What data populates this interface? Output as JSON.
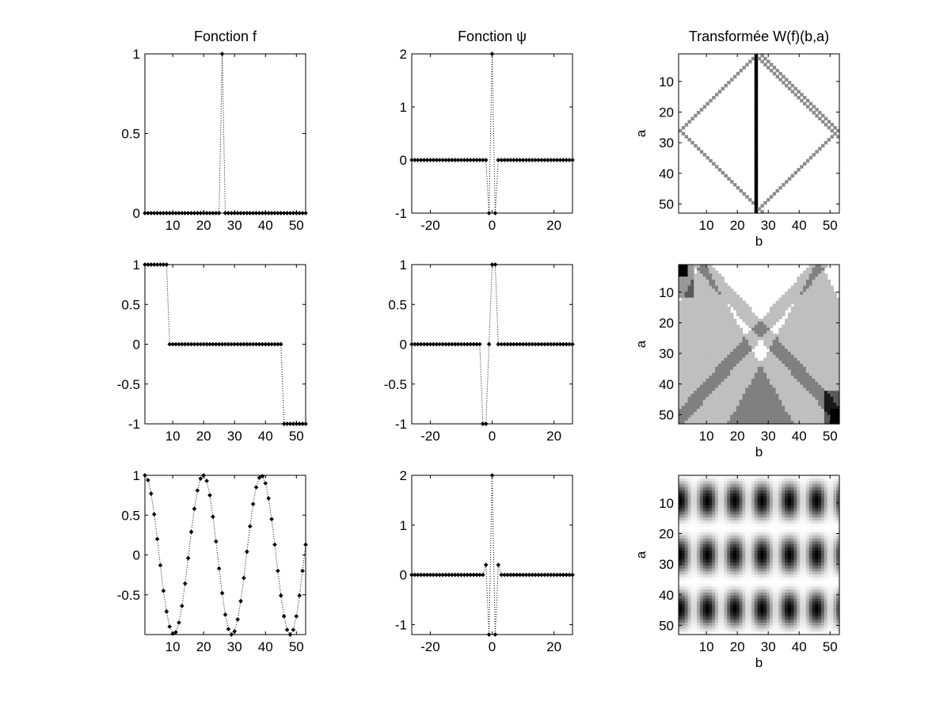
{
  "chart_data": [
    {
      "name": "f1",
      "type": "line",
      "marker": "dot",
      "linestyle": "dotted",
      "title": "Fonction f",
      "xlabel": "",
      "ylabel": "",
      "xlim": [
        1,
        53
      ],
      "ylim": [
        0,
        1
      ],
      "xticks": [
        10,
        20,
        30,
        40,
        50
      ],
      "yticks": [
        0,
        0.5,
        1
      ],
      "xtick_labels": [
        "10",
        "20",
        "30",
        "40",
        "50"
      ],
      "ytick_labels": [
        "0",
        "0.5",
        "1"
      ],
      "x_start": 1,
      "x_step": 1,
      "values": [
        0,
        0,
        0,
        0,
        0,
        0,
        0,
        0,
        0,
        0,
        0,
        0,
        0,
        0,
        0,
        0,
        0,
        0,
        0,
        0,
        0,
        0,
        0,
        0,
        0,
        1,
        0,
        0,
        0,
        0,
        0,
        0,
        0,
        0,
        0,
        0,
        0,
        0,
        0,
        0,
        0,
        0,
        0,
        0,
        0,
        0,
        0,
        0,
        0,
        0,
        0,
        0,
        0
      ]
    },
    {
      "name": "psi1",
      "type": "line",
      "marker": "dot",
      "linestyle": "dotted",
      "title": "Fonction ψ",
      "xlabel": "",
      "ylabel": "",
      "xlim": [
        -26,
        26
      ],
      "ylim": [
        -1,
        2
      ],
      "xticks": [
        -20,
        0,
        20
      ],
      "yticks": [
        -1,
        0,
        1,
        2
      ],
      "xtick_labels": [
        "-20",
        "0",
        "20"
      ],
      "ytick_labels": [
        "-1",
        "0",
        "1",
        "2"
      ],
      "x_start": -26,
      "x_step": 1,
      "values": [
        0,
        0,
        0,
        0,
        0,
        0,
        0,
        0,
        0,
        0,
        0,
        0,
        0,
        0,
        0,
        0,
        0,
        0,
        0,
        0,
        0,
        0,
        0,
        0,
        0,
        -1,
        2,
        -1,
        0,
        0,
        0,
        0,
        0,
        0,
        0,
        0,
        0,
        0,
        0,
        0,
        0,
        0,
        0,
        0,
        0,
        0,
        0,
        0,
        0,
        0,
        0,
        0,
        0
      ]
    },
    {
      "name": "w1",
      "type": "heatmap",
      "pattern": "diamond",
      "title": "Transformée W(f)(b,a)",
      "xlabel": "b",
      "ylabel": "a",
      "xlim": [
        1,
        53
      ],
      "ylim": [
        1,
        53
      ],
      "xticks": [
        10,
        20,
        30,
        40,
        50
      ],
      "yticks": [
        10,
        20,
        30,
        40,
        50
      ],
      "xtick_labels": [
        "10",
        "20",
        "30",
        "40",
        "50"
      ],
      "ytick_labels": [
        "10",
        "20",
        "30",
        "40",
        "50"
      ],
      "spike_column": 26,
      "colors": [
        "#ffffff",
        "#9a9a9a",
        "#000000"
      ]
    },
    {
      "name": "f2",
      "type": "line",
      "marker": "dot",
      "linestyle": "dotted",
      "title": "",
      "xlabel": "",
      "ylabel": "",
      "xlim": [
        1,
        53
      ],
      "ylim": [
        -1,
        1
      ],
      "xticks": [
        10,
        20,
        30,
        40,
        50
      ],
      "yticks": [
        -1,
        -0.5,
        0,
        0.5,
        1
      ],
      "xtick_labels": [
        "10",
        "20",
        "30",
        "40",
        "50"
      ],
      "ytick_labels": [
        "-1",
        "-0.5",
        "0",
        "0.5",
        "1"
      ],
      "x_start": 1,
      "x_step": 1,
      "values": [
        1,
        1,
        1,
        1,
        1,
        1,
        1,
        1,
        0,
        0,
        0,
        0,
        0,
        0,
        0,
        0,
        0,
        0,
        0,
        0,
        0,
        0,
        0,
        0,
        0,
        0,
        0,
        0,
        0,
        0,
        0,
        0,
        0,
        0,
        0,
        0,
        0,
        0,
        0,
        0,
        0,
        0,
        0,
        0,
        0,
        -1,
        -1,
        -1,
        -1,
        -1,
        -1,
        -1,
        -1
      ]
    },
    {
      "name": "psi2",
      "type": "line",
      "marker": "dot",
      "linestyle": "dotted",
      "title": "",
      "xlabel": "",
      "ylabel": "",
      "xlim": [
        -26,
        26
      ],
      "ylim": [
        -1,
        1
      ],
      "xticks": [
        -20,
        0,
        20
      ],
      "yticks": [
        -1,
        -0.5,
        0,
        0.5,
        1
      ],
      "xtick_labels": [
        "-20",
        "0",
        "20"
      ],
      "ytick_labels": [
        "-1",
        "-0.5",
        "0",
        "0.5",
        "1"
      ],
      "x_start": -26,
      "x_step": 1,
      "values": [
        0,
        0,
        0,
        0,
        0,
        0,
        0,
        0,
        0,
        0,
        0,
        0,
        0,
        0,
        0,
        0,
        0,
        0,
        0,
        0,
        0,
        0,
        0,
        -1,
        -1,
        0,
        1,
        1,
        0,
        0,
        0,
        0,
        0,
        0,
        0,
        0,
        0,
        0,
        0,
        0,
        0,
        0,
        0,
        0,
        0,
        0,
        0,
        0,
        0,
        0,
        0,
        0,
        0
      ]
    },
    {
      "name": "w2",
      "type": "heatmap",
      "pattern": "steps",
      "title": "",
      "xlabel": "b",
      "ylabel": "a",
      "xlim": [
        1,
        53
      ],
      "ylim": [
        1,
        53
      ],
      "xticks": [
        10,
        20,
        30,
        40,
        50
      ],
      "yticks": [
        10,
        20,
        30,
        40,
        50
      ],
      "xtick_labels": [
        "10",
        "20",
        "30",
        "40",
        "50"
      ],
      "ytick_labels": [
        "10",
        "20",
        "30",
        "40",
        "50"
      ],
      "steps_at": [
        8,
        46
      ],
      "colors": [
        "#ffffff",
        "#c0c0c0",
        "#7a7a7a",
        "#000000"
      ]
    },
    {
      "name": "f3",
      "type": "line",
      "marker": "dot",
      "linestyle": "dotted",
      "title": "",
      "xlabel": "",
      "ylabel": "",
      "xlim": [
        1,
        53
      ],
      "ylim": [
        -1,
        1
      ],
      "xticks": [
        10,
        20,
        30,
        40,
        50
      ],
      "yticks": [
        -0.5,
        0,
        0.5,
        1
      ],
      "xtick_labels": [
        "10",
        "20",
        "30",
        "40",
        "50"
      ],
      "ytick_labels": [
        "-0.5",
        "0",
        "0.5",
        "1"
      ],
      "x_start": 1,
      "x_step": 1,
      "values": [
        1,
        0.94,
        0.77,
        0.51,
        0.2,
        -0.13,
        -0.45,
        -0.71,
        -0.9,
        -0.99,
        -0.97,
        -0.85,
        -0.64,
        -0.36,
        -0.04,
        0.29,
        0.58,
        0.81,
        0.96,
        1,
        0.93,
        0.75,
        0.48,
        0.17,
        -0.17,
        -0.48,
        -0.75,
        -0.93,
        -1,
        -0.96,
        -0.81,
        -0.58,
        -0.29,
        0.04,
        0.36,
        0.64,
        0.85,
        0.97,
        0.99,
        0.9,
        0.71,
        0.45,
        0.13,
        -0.2,
        -0.51,
        -0.77,
        -0.94,
        -1,
        -0.94,
        -0.77,
        -0.51,
        -0.2,
        0.13
      ]
    },
    {
      "name": "psi3",
      "type": "line",
      "marker": "dot",
      "linestyle": "dotted",
      "title": "",
      "xlabel": "",
      "ylabel": "",
      "xlim": [
        -26,
        26
      ],
      "ylim": [
        -1.2,
        2
      ],
      "xticks": [
        -20,
        0,
        20
      ],
      "yticks": [
        -1,
        0,
        1,
        2
      ],
      "xtick_labels": [
        "-20",
        "0",
        "20"
      ],
      "ytick_labels": [
        "-1",
        "0",
        "1",
        "2"
      ],
      "x_start": -26,
      "x_step": 1,
      "values": [
        0,
        0,
        0,
        0,
        0,
        0,
        0,
        0,
        0,
        0,
        0,
        0,
        0,
        0,
        0,
        0,
        0,
        0,
        0,
        0,
        0,
        0,
        0,
        0,
        0.2,
        -1.2,
        2,
        -1.2,
        0.2,
        0,
        0,
        0,
        0,
        0,
        0,
        0,
        0,
        0,
        0,
        0,
        0,
        0,
        0,
        0,
        0,
        0,
        0,
        0,
        0,
        0,
        0,
        0,
        0
      ]
    },
    {
      "name": "w3",
      "type": "heatmap",
      "pattern": "blobs",
      "title": "",
      "xlabel": "b",
      "ylabel": "a",
      "xlim": [
        1,
        53
      ],
      "ylim": [
        1,
        53
      ],
      "xticks": [
        10,
        20,
        30,
        40,
        50
      ],
      "yticks": [
        10,
        20,
        30,
        40,
        50
      ],
      "xtick_labels": [
        "10",
        "20",
        "30",
        "40",
        "50"
      ],
      "ytick_labels": [
        "10",
        "20",
        "30",
        "40",
        "50"
      ],
      "blob_rows": [
        9,
        27,
        45
      ],
      "blob_cols": [
        1,
        10,
        19,
        28,
        37,
        46
      ],
      "colors": [
        "#ffffff",
        "#000000"
      ]
    }
  ]
}
